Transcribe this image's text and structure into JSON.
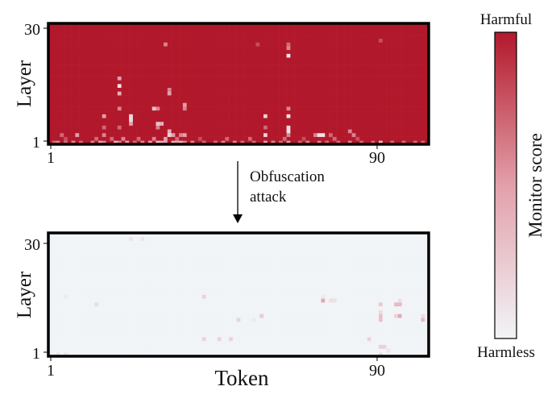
{
  "colors": {
    "harmful": "#b2182b",
    "mid": "#e2a0aa",
    "harmless": "#f1f4f7"
  },
  "annotation": {
    "line1": "Obfuscation",
    "line2": "attack"
  },
  "colorbar": {
    "label": "Monitor score",
    "top_label": "Harmful",
    "bottom_label": "Harmless",
    "range": [
      0,
      1
    ]
  },
  "chart_data": [
    {
      "type": "heatmap",
      "panel": "before-attack",
      "xlabel": "",
      "ylabel": "Layer",
      "x_ticks": [
        "1",
        "90"
      ],
      "y_ticks": [
        "1",
        "30"
      ],
      "tokens": 99,
      "layers": 32,
      "base_value": 1.0,
      "cells": [
        [
          63,
          24,
          0.1
        ],
        [
          63,
          26,
          0.6
        ],
        [
          63,
          27,
          0.7
        ],
        [
          63,
          10,
          0.6
        ],
        [
          63,
          8,
          0.1
        ],
        [
          63,
          5,
          0.15
        ],
        [
          63,
          4,
          0.1
        ],
        [
          63,
          3,
          0.6
        ],
        [
          57,
          8,
          0.2
        ],
        [
          57,
          3,
          0.2
        ],
        [
          57,
          5,
          0.7
        ],
        [
          19,
          16,
          0.1
        ],
        [
          19,
          18,
          0.5
        ],
        [
          19,
          14,
          0.4
        ],
        [
          19,
          10,
          0.6
        ],
        [
          19,
          5,
          0.7
        ],
        [
          22,
          7,
          0.15
        ],
        [
          22,
          8,
          0.15
        ],
        [
          22,
          6,
          0.5
        ],
        [
          15,
          8,
          0.5
        ],
        [
          15,
          3,
          0.6
        ],
        [
          15,
          5,
          0.7
        ],
        [
          28,
          10,
          0.3
        ],
        [
          29,
          10,
          0.6
        ],
        [
          32,
          14,
          0.5
        ],
        [
          32,
          15,
          0.6
        ],
        [
          29,
          6,
          0.3
        ],
        [
          30,
          6,
          0.4
        ],
        [
          29,
          5,
          0.6
        ],
        [
          32,
          3,
          0.2
        ],
        [
          32,
          4,
          0.4
        ],
        [
          33,
          3,
          0.5
        ],
        [
          36,
          11,
          0.5
        ],
        [
          36,
          10,
          0.6
        ],
        [
          36,
          3,
          0.5
        ],
        [
          35,
          3,
          0.6
        ],
        [
          71,
          3,
          0.1
        ],
        [
          72,
          3,
          0.1
        ],
        [
          70,
          3,
          0.6
        ],
        [
          74,
          3,
          0.7
        ],
        [
          79,
          4,
          0.6
        ],
        [
          80,
          3,
          0.6
        ],
        [
          8,
          3,
          0.5
        ],
        [
          4,
          3,
          0.7
        ],
        [
          31,
          27,
          0.6
        ],
        [
          87,
          1,
          0.3
        ],
        [
          87,
          28,
          0.8
        ],
        [
          55,
          27,
          0.8
        ],
        [
          2,
          1,
          0.7
        ],
        [
          3,
          1,
          0.6
        ],
        [
          5,
          1,
          0.7
        ],
        [
          7,
          1,
          0.6
        ],
        [
          9,
          1,
          0.7
        ],
        [
          12,
          1,
          0.6
        ],
        [
          14,
          1,
          0.5
        ],
        [
          15,
          1,
          0.6
        ],
        [
          18,
          1,
          0.4
        ],
        [
          19,
          1,
          0.6
        ],
        [
          21,
          1,
          0.5
        ],
        [
          23,
          1,
          0.7
        ],
        [
          25,
          1,
          0.6
        ],
        [
          27,
          1,
          0.5
        ],
        [
          29,
          1,
          0.3
        ],
        [
          30,
          1,
          0.4
        ],
        [
          31,
          1,
          0.5
        ],
        [
          33,
          1,
          0.4
        ],
        [
          34,
          1,
          0.5
        ],
        [
          35,
          1,
          0.4
        ],
        [
          36,
          1,
          0.6
        ],
        [
          38,
          1,
          0.6
        ],
        [
          41,
          1,
          0.7
        ],
        [
          44,
          1,
          0.7
        ],
        [
          46,
          1,
          0.6
        ],
        [
          49,
          1,
          0.6
        ],
        [
          51,
          1,
          0.7
        ],
        [
          54,
          1,
          0.7
        ],
        [
          57,
          1,
          0.5
        ],
        [
          59,
          1,
          0.6
        ],
        [
          61,
          1,
          0.7
        ],
        [
          63,
          1,
          0.5
        ],
        [
          66,
          1,
          0.7
        ],
        [
          68,
          1,
          0.6
        ],
        [
          71,
          1,
          0.6
        ],
        [
          73,
          1,
          0.7
        ],
        [
          76,
          1,
          0.7
        ],
        [
          79,
          1,
          0.6
        ],
        [
          82,
          1,
          0.7
        ],
        [
          85,
          1,
          0.7
        ],
        [
          90,
          1,
          0.7
        ],
        [
          93,
          1,
          0.7
        ],
        [
          96,
          1,
          0.7
        ],
        [
          98,
          1,
          0.7
        ],
        [
          5,
          2,
          0.8
        ],
        [
          13,
          2,
          0.7
        ],
        [
          17,
          2,
          0.7
        ],
        [
          20,
          2,
          0.6
        ],
        [
          24,
          2,
          0.7
        ],
        [
          28,
          2,
          0.6
        ],
        [
          31,
          2,
          0.5
        ],
        [
          34,
          2,
          0.7
        ],
        [
          40,
          2,
          0.8
        ],
        [
          47,
          2,
          0.7
        ],
        [
          53,
          2,
          0.7
        ],
        [
          62,
          2,
          0.7
        ],
        [
          67,
          2,
          0.8
        ],
        [
          75,
          2,
          0.7
        ],
        [
          81,
          2,
          0.8
        ]
      ]
    },
    {
      "type": "heatmap",
      "panel": "after-attack",
      "xlabel": "Token",
      "ylabel": "Layer",
      "x_ticks": [
        "1",
        "90"
      ],
      "y_ticks": [
        "1",
        "30"
      ],
      "tokens": 99,
      "layers": 32,
      "base_value": 0.0,
      "cells": [
        [
          72,
          15,
          0.45
        ],
        [
          74,
          15,
          0.12
        ],
        [
          75,
          15,
          0.12
        ],
        [
          72,
          16,
          0.08
        ],
        [
          87,
          14,
          0.25
        ],
        [
          87,
          11,
          0.3
        ],
        [
          87,
          10,
          0.3
        ],
        [
          87,
          12,
          0.15
        ],
        [
          91,
          14,
          0.35
        ],
        [
          92,
          14,
          0.35
        ],
        [
          92,
          11,
          0.45
        ],
        [
          91,
          11,
          0.2
        ],
        [
          92,
          15,
          0.12
        ],
        [
          98,
          10,
          0.35
        ],
        [
          98,
          11,
          0.15
        ],
        [
          41,
          16,
          0.2
        ],
        [
          41,
          5,
          0.2
        ],
        [
          45,
          5,
          0.2
        ],
        [
          48,
          5,
          0.2
        ],
        [
          56,
          11,
          0.25
        ],
        [
          50,
          10,
          0.2
        ],
        [
          54,
          10,
          0.08
        ],
        [
          84,
          5,
          0.2
        ],
        [
          87,
          3,
          0.2
        ],
        [
          88,
          3,
          0.2
        ],
        [
          89,
          2,
          0.1
        ],
        [
          87,
          1,
          0.15
        ],
        [
          22,
          31,
          0.1
        ],
        [
          25,
          31,
          0.1
        ],
        [
          3,
          1,
          0.1
        ],
        [
          5,
          1,
          0.1
        ],
        [
          13,
          14,
          0.15
        ],
        [
          5,
          16,
          0.06
        ]
      ]
    }
  ]
}
